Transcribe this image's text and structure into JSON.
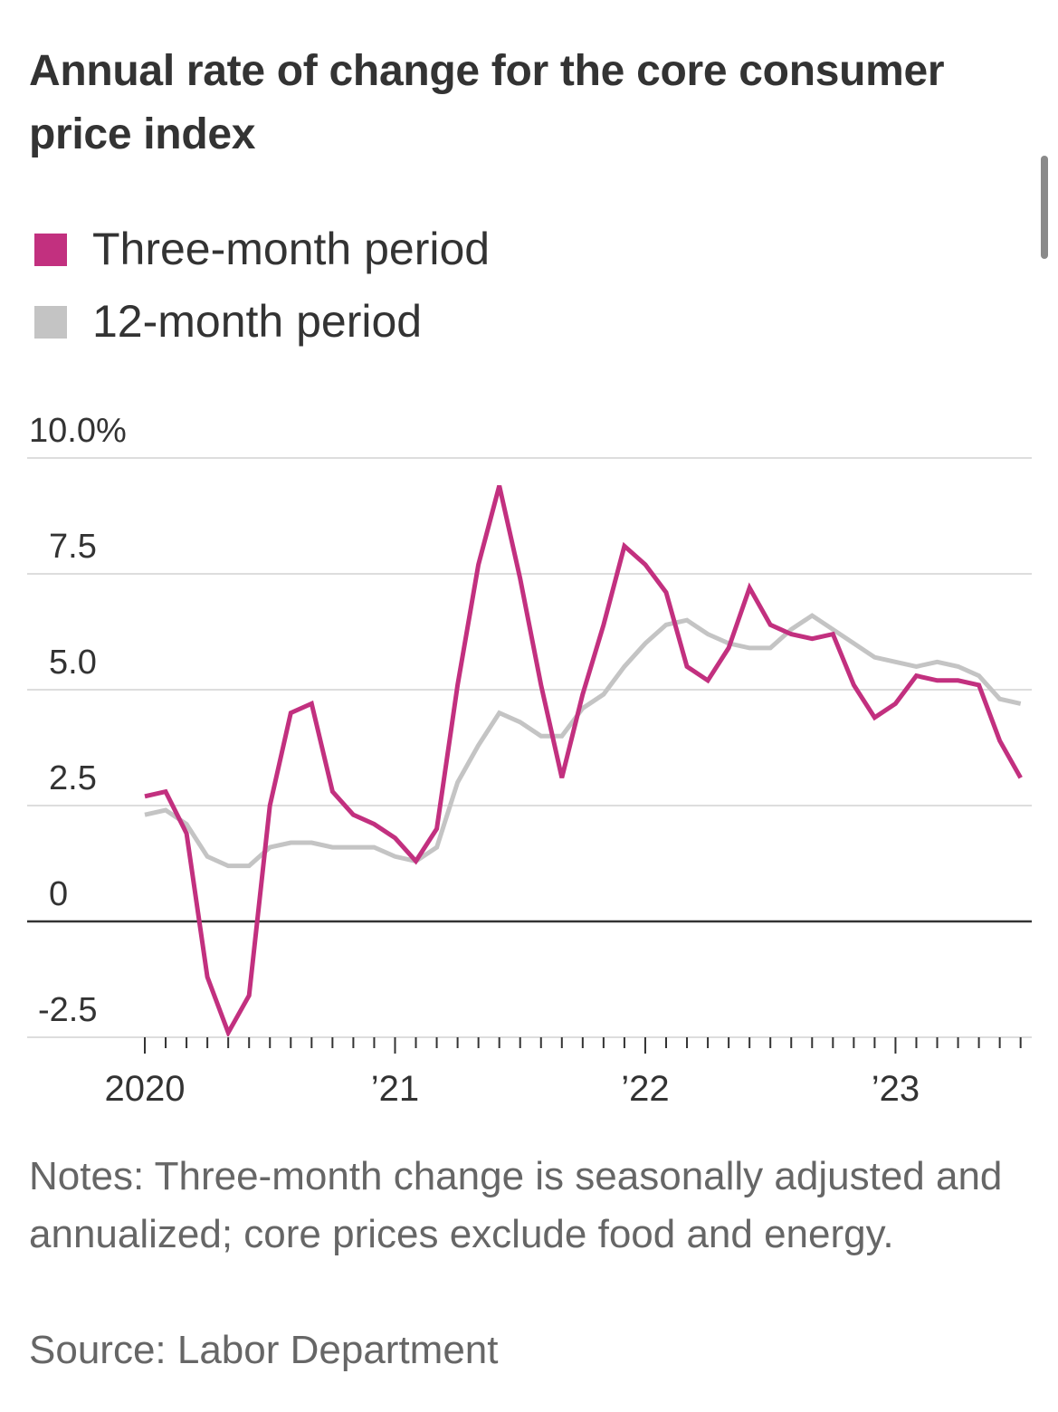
{
  "title": "Annual rate of change for the core consumer price index",
  "notes": "Notes: Three-month change is seasonally adjusted and annualized; core prices exclude food and energy.",
  "source": "Source: Labor Department",
  "colors": {
    "three_month": "#c2307f",
    "twelve_month": "#c4c4c4",
    "zero_line": "#333333",
    "grid": "#dddddd"
  },
  "chart_data": {
    "type": "line",
    "title": "Annual rate of change for the core consumer price index",
    "xlabel": "",
    "ylabel": "",
    "x": [
      "2020-01",
      "2020-02",
      "2020-03",
      "2020-04",
      "2020-05",
      "2020-06",
      "2020-07",
      "2020-08",
      "2020-09",
      "2020-10",
      "2020-11",
      "2020-12",
      "2021-01",
      "2021-02",
      "2021-03",
      "2021-04",
      "2021-05",
      "2021-06",
      "2021-07",
      "2021-08",
      "2021-09",
      "2021-10",
      "2021-11",
      "2021-12",
      "2022-01",
      "2022-02",
      "2022-03",
      "2022-04",
      "2022-05",
      "2022-06",
      "2022-07",
      "2022-08",
      "2022-09",
      "2022-10",
      "2022-11",
      "2022-12",
      "2023-01",
      "2023-02",
      "2023-03",
      "2023-04",
      "2023-05",
      "2023-06",
      "2023-07",
      "2023-08",
      "2023-09"
    ],
    "series": [
      {
        "name": "Three-month period",
        "color": "#c2307f",
        "values": [
          2.7,
          2.8,
          1.9,
          -1.2,
          -2.4,
          -1.6,
          2.5,
          4.5,
          4.7,
          2.8,
          2.3,
          2.1,
          1.8,
          1.3,
          2.0,
          5.1,
          7.7,
          9.4,
          7.4,
          5.1,
          3.1,
          4.9,
          6.4,
          8.1,
          7.7,
          7.1,
          5.5,
          5.2,
          5.9,
          7.2,
          6.4,
          6.2,
          6.1,
          6.2,
          5.1,
          4.4,
          4.7,
          5.3,
          5.2,
          5.2,
          5.1,
          3.9,
          3.1,
          null,
          null
        ]
      },
      {
        "name": "12-month period",
        "color": "#c4c4c4",
        "values": [
          2.3,
          2.4,
          2.1,
          1.4,
          1.2,
          1.2,
          1.6,
          1.7,
          1.7,
          1.6,
          1.6,
          1.6,
          1.4,
          1.3,
          1.6,
          3.0,
          3.8,
          4.5,
          4.3,
          4.0,
          4.0,
          4.6,
          4.9,
          5.5,
          6.0,
          6.4,
          6.5,
          6.2,
          6.0,
          5.9,
          5.9,
          6.3,
          6.6,
          6.3,
          6.0,
          5.7,
          5.6,
          5.5,
          5.6,
          5.5,
          5.3,
          4.8,
          4.7,
          null,
          null
        ]
      }
    ],
    "ylim": [
      -2.5,
      10
    ],
    "yticks": [
      {
        "value": 10,
        "label": "10.0%"
      },
      {
        "value": 7.5,
        "label": "7.5"
      },
      {
        "value": 5,
        "label": "5.0"
      },
      {
        "value": 2.5,
        "label": "2.5"
      },
      {
        "value": 0,
        "label": "0"
      },
      {
        "value": -2.5,
        "label": "-2.5"
      }
    ],
    "xticks": [
      {
        "x": "2020-01",
        "label": "2020"
      },
      {
        "x": "2021-01",
        "label": "’21"
      },
      {
        "x": "2022-01",
        "label": "’22"
      },
      {
        "x": "2023-01",
        "label": "’23"
      }
    ],
    "grid": true,
    "legend_position": "top-left"
  }
}
